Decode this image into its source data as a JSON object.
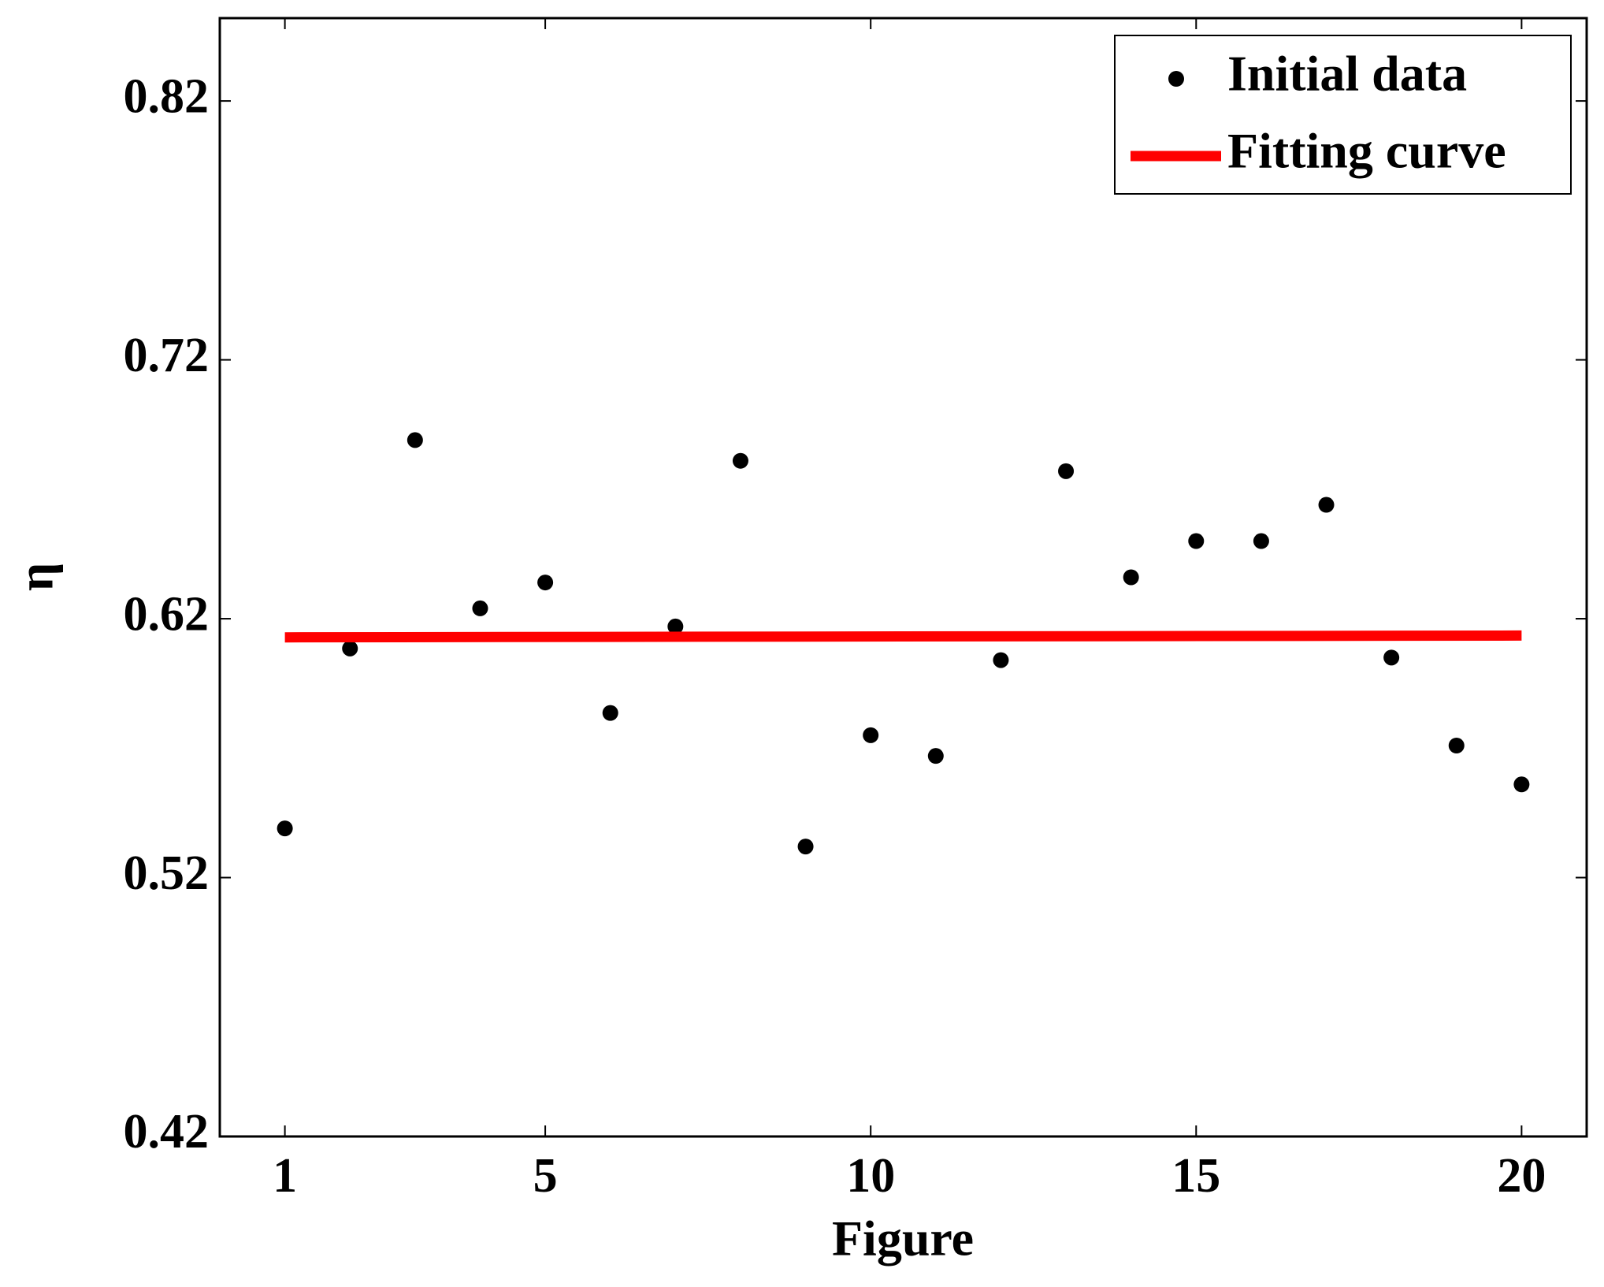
{
  "chart_data": {
    "type": "scatter",
    "x_label": "Figure",
    "y_label": "η",
    "xlim": [
      0,
      21
    ],
    "ylim": [
      0.42,
      0.852
    ],
    "xticks": [
      1,
      5,
      10,
      15,
      20
    ],
    "yticks": [
      0.42,
      0.52,
      0.62,
      0.72,
      0.82
    ],
    "legend": "top-right",
    "series": [
      {
        "name": "Initial data",
        "color": "#000000",
        "style": "markers",
        "x": [
          1,
          2,
          3,
          4,
          5,
          6,
          7,
          8,
          9,
          10,
          11,
          12,
          13,
          14,
          15,
          16,
          17,
          18,
          19,
          20
        ],
        "values": [
          0.539,
          0.6085,
          0.689,
          0.624,
          0.634,
          0.5836,
          0.617,
          0.681,
          0.532,
          0.575,
          0.567,
          0.604,
          0.677,
          0.636,
          0.65,
          0.65,
          0.664,
          0.605,
          0.571,
          0.556
        ]
      },
      {
        "name": "Fitting curve",
        "color": "#ff0000",
        "style": "line",
        "x": [
          1,
          20
        ],
        "values": [
          0.6128,
          0.6135
        ]
      }
    ]
  }
}
